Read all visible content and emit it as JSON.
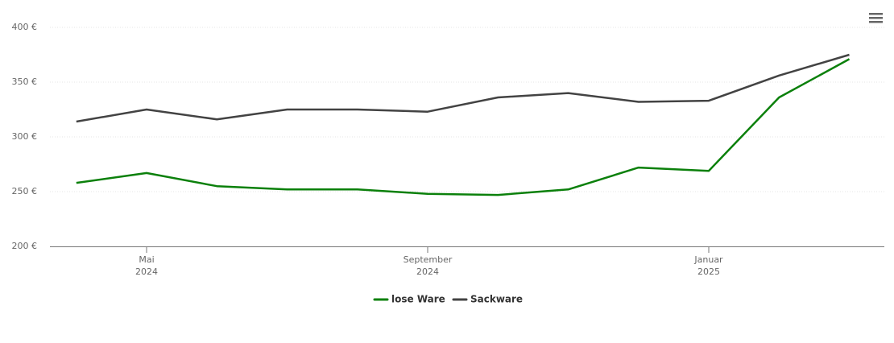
{
  "chart_data": {
    "type": "line",
    "x": [
      "2024-04",
      "2024-05",
      "2024-06",
      "2024-07",
      "2024-08",
      "2024-09",
      "2024-10",
      "2024-11",
      "2024-12",
      "2025-01",
      "2025-02",
      "2025-03"
    ],
    "series": [
      {
        "name": "lose Ware",
        "color": "#0b800b",
        "values": [
          258,
          267,
          255,
          252,
          252,
          248,
          247,
          252,
          272,
          269,
          336,
          371
        ]
      },
      {
        "name": "Sackware",
        "color": "#434343",
        "values": [
          314,
          325,
          316,
          325,
          325,
          323,
          336,
          340,
          332,
          333,
          356,
          375
        ]
      }
    ],
    "ylim": [
      200,
      400
    ],
    "yticks": [
      {
        "value": 200,
        "label": "200 €"
      },
      {
        "value": 250,
        "label": "250 €"
      },
      {
        "value": 300,
        "label": "300 €"
      },
      {
        "value": 350,
        "label": "350 €"
      },
      {
        "value": 400,
        "label": "400 €"
      }
    ],
    "xticks": [
      {
        "value": "2024-05",
        "label": "Mai"
      },
      {
        "value": "2024-09",
        "label": "September"
      },
      {
        "value": "2025-01",
        "label": "Januar"
      }
    ],
    "xtick_years": [
      "2024",
      "2024",
      "2025"
    ],
    "grid": true,
    "legend": "bottom"
  }
}
